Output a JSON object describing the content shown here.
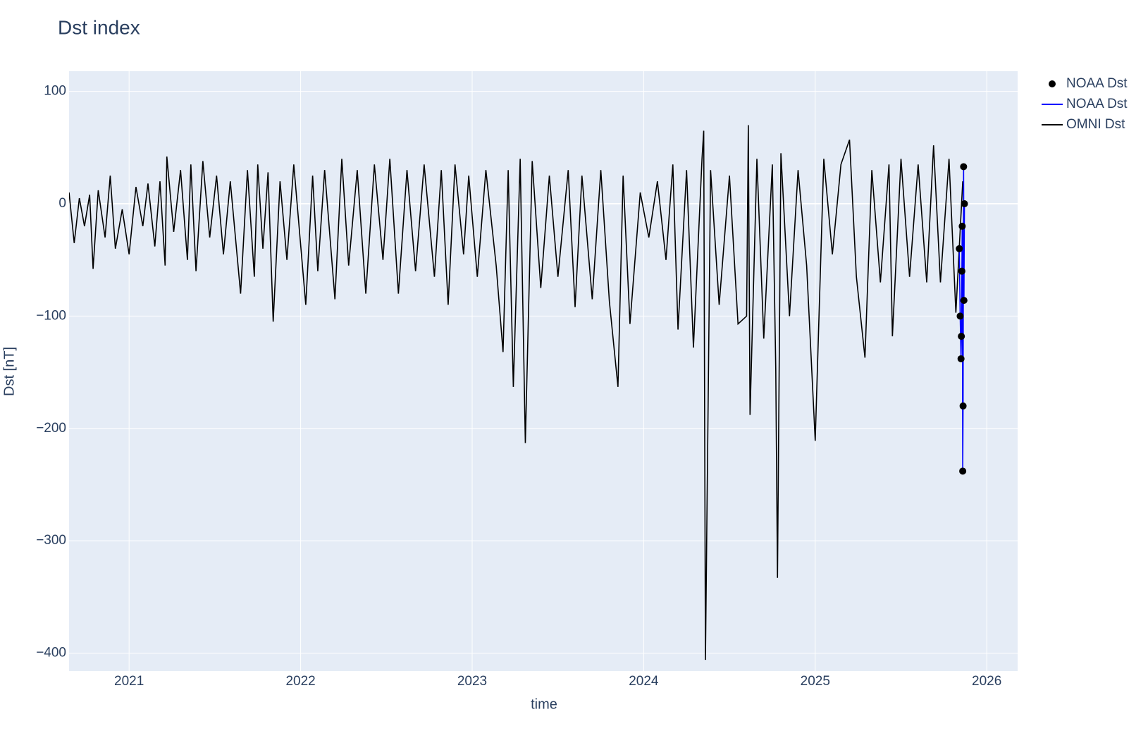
{
  "chart_data": {
    "type": "line",
    "title": "Dst index",
    "x_label": "time",
    "y_label": "Dst [nT]",
    "xlim": [
      2020.65,
      2026.18
    ],
    "xticks": [
      2021,
      2022,
      2023,
      2024,
      2025,
      2026
    ],
    "ylim": [
      -416,
      118
    ],
    "yticks": [
      {
        "value": -400,
        "label": "−400"
      },
      {
        "value": -300,
        "label": "−300"
      },
      {
        "value": -200,
        "label": "−200"
      },
      {
        "value": -100,
        "label": "−100"
      },
      0,
      100
    ],
    "grid": true,
    "legend": "top-right",
    "series": [
      {
        "name": "NOAA Dst",
        "mode": "markers",
        "color": "#000000",
        "x": [
          2025.84,
          2025.845,
          2025.85,
          2025.852,
          2025.855,
          2025.857,
          2025.86,
          2025.862,
          2025.865,
          2025.867,
          2025.87
        ],
        "values": [
          -40,
          -100,
          -138,
          -118,
          -60,
          -20,
          -238,
          -180,
          33,
          -86,
          0
        ]
      },
      {
        "name": "NOAA Dst",
        "mode": "lines",
        "color": "#0000ff",
        "x": [
          2025.84,
          2025.845,
          2025.85,
          2025.852,
          2025.855,
          2025.857,
          2025.86,
          2025.862,
          2025.865,
          2025.867,
          2025.87
        ],
        "values": [
          -40,
          -100,
          -138,
          -118,
          -60,
          -20,
          -238,
          -180,
          33,
          -86,
          0
        ]
      },
      {
        "name": "OMNI Dst",
        "mode": "lines",
        "color": "#000000",
        "x": [
          2020.65,
          2020.68,
          2020.71,
          2020.74,
          2020.77,
          2020.79,
          2020.82,
          2020.86,
          2020.89,
          2020.92,
          2020.96,
          2021.0,
          2021.04,
          2021.08,
          2021.11,
          2021.15,
          2021.18,
          2021.21,
          2021.22,
          2021.26,
          2021.3,
          2021.34,
          2021.36,
          2021.39,
          2021.43,
          2021.47,
          2021.51,
          2021.55,
          2021.59,
          2021.65,
          2021.69,
          2021.73,
          2021.75,
          2021.78,
          2021.81,
          2021.84,
          2021.88,
          2021.92,
          2021.96,
          2022.03,
          2022.07,
          2022.1,
          2022.14,
          2022.2,
          2022.24,
          2022.28,
          2022.33,
          2022.38,
          2022.43,
          2022.48,
          2022.52,
          2022.57,
          2022.62,
          2022.67,
          2022.72,
          2022.78,
          2022.82,
          2022.86,
          2022.9,
          2022.95,
          2022.98,
          2023.03,
          2023.08,
          2023.14,
          2023.18,
          2023.21,
          2023.24,
          2023.28,
          2023.31,
          2023.35,
          2023.4,
          2023.45,
          2023.5,
          2023.56,
          2023.6,
          2023.64,
          2023.7,
          2023.75,
          2023.8,
          2023.85,
          2023.88,
          2023.92,
          2023.98,
          2024.03,
          2024.08,
          2024.13,
          2024.17,
          2024.2,
          2024.25,
          2024.29,
          2024.34,
          2024.35,
          2024.36,
          2024.39,
          2024.44,
          2024.5,
          2024.55,
          2024.6,
          2024.61,
          2024.62,
          2024.66,
          2024.7,
          2024.75,
          2024.77,
          2024.78,
          2024.8,
          2024.85,
          2024.9,
          2024.95,
          2025.0,
          2025.05,
          2025.1,
          2025.15,
          2025.2,
          2025.24,
          2025.29,
          2025.33,
          2025.38,
          2025.43,
          2025.45,
          2025.5,
          2025.55,
          2025.6,
          2025.65,
          2025.69,
          2025.73,
          2025.78,
          2025.82,
          2025.86
        ],
        "values": [
          10,
          -35,
          5,
          -20,
          8,
          -58,
          12,
          -30,
          25,
          -40,
          -5,
          -45,
          15,
          -20,
          18,
          -38,
          20,
          -55,
          42,
          -25,
          30,
          -50,
          35,
          -60,
          38,
          -30,
          25,
          -45,
          20,
          -80,
          30,
          -65,
          35,
          -40,
          28,
          -105,
          20,
          -50,
          35,
          -90,
          25,
          -60,
          30,
          -85,
          40,
          -55,
          30,
          -80,
          35,
          -50,
          40,
          -80,
          30,
          -60,
          35,
          -65,
          30,
          -90,
          35,
          -45,
          25,
          -65,
          30,
          -55,
          -132,
          30,
          -163,
          40,
          -213,
          38,
          -75,
          25,
          -65,
          30,
          -92,
          25,
          -85,
          30,
          -87,
          -163,
          25,
          -107,
          10,
          -30,
          20,
          -50,
          35,
          -112,
          30,
          -128,
          40,
          65,
          -406,
          30,
          -90,
          25,
          -107,
          -100,
          70,
          -188,
          40,
          -120,
          35,
          -147,
          -333,
          45,
          -100,
          30,
          -55,
          -211,
          40,
          -45,
          35,
          57,
          -65,
          -137,
          30,
          -70,
          35,
          -118,
          40,
          -65,
          35,
          -70,
          52,
          -70,
          40,
          -97,
          20
        ]
      }
    ]
  }
}
